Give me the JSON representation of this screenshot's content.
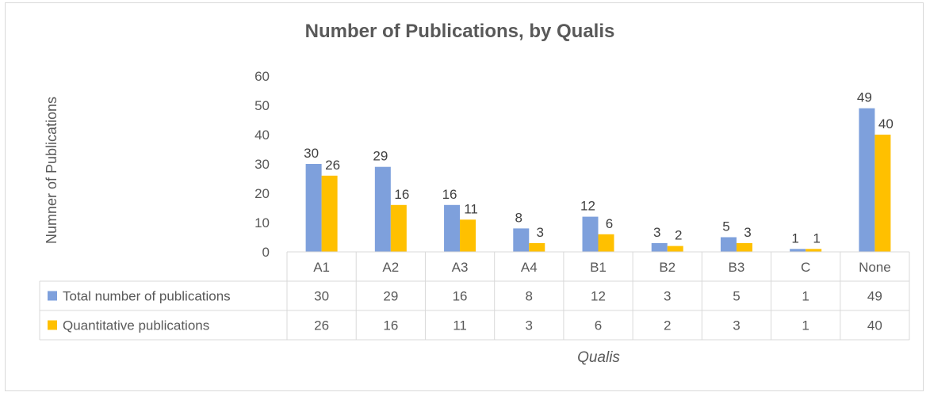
{
  "chart_data": {
    "type": "bar",
    "title": "Number of Publications, by Qualis",
    "xlabel": "Qualis",
    "ylabel": "Numner of Publications",
    "ylim": [
      0,
      60
    ],
    "yticks": [
      0,
      10,
      20,
      30,
      40,
      50,
      60
    ],
    "grid": false,
    "legend": "data-table-left",
    "categories": [
      "A1",
      "A2",
      "A3",
      "A4",
      "B1",
      "B2",
      "B3",
      "C",
      "None"
    ],
    "series": [
      {
        "name": "Total number of publications",
        "color": "#7ea0dc",
        "values": [
          30,
          29,
          16,
          8,
          12,
          3,
          5,
          1,
          49
        ]
      },
      {
        "name": "Quantitative publications",
        "color": "#ffc000",
        "values": [
          26,
          16,
          11,
          3,
          6,
          2,
          3,
          1,
          40
        ]
      }
    ]
  }
}
